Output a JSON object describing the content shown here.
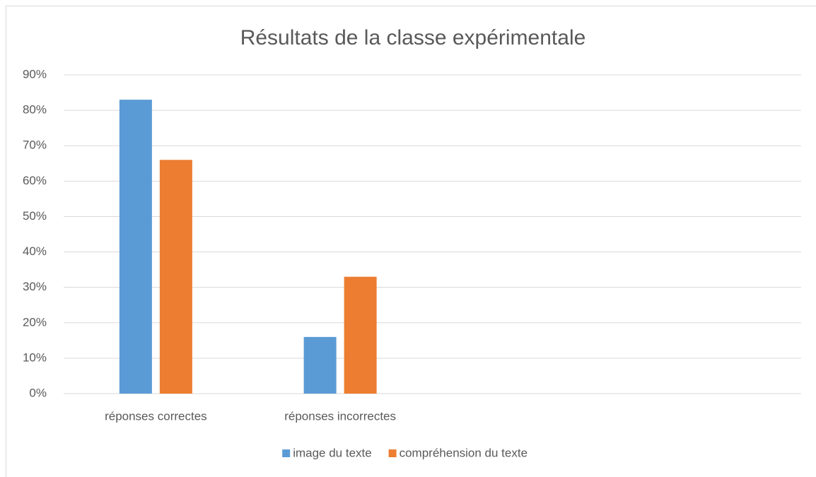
{
  "chart_data": {
    "type": "bar",
    "title": "Résultats de la classe expérimentale",
    "categories": [
      "réponses correctes",
      "réponses incorrectes",
      null,
      null
    ],
    "series": [
      {
        "name": "image du texte",
        "color": "#5b9bd5",
        "values": [
          83,
          16,
          null,
          null
        ]
      },
      {
        "name": "compréhension du texte",
        "color": "#ed7d31",
        "values": [
          66,
          33,
          null,
          null
        ]
      }
    ],
    "ylim": [
      0,
      90
    ],
    "yticks": [
      {
        "value": 0,
        "label": "0%"
      },
      {
        "value": 10,
        "label": "10%"
      },
      {
        "value": 20,
        "label": "20%"
      },
      {
        "value": 30,
        "label": "30%"
      },
      {
        "value": 40,
        "label": "40%"
      },
      {
        "value": 50,
        "label": "50%"
      },
      {
        "value": 60,
        "label": "60%"
      },
      {
        "value": 70,
        "label": "70%"
      },
      {
        "value": 80,
        "label": "80%"
      },
      {
        "value": 90,
        "label": "90%"
      }
    ],
    "grid": true,
    "legend": "bottom"
  }
}
